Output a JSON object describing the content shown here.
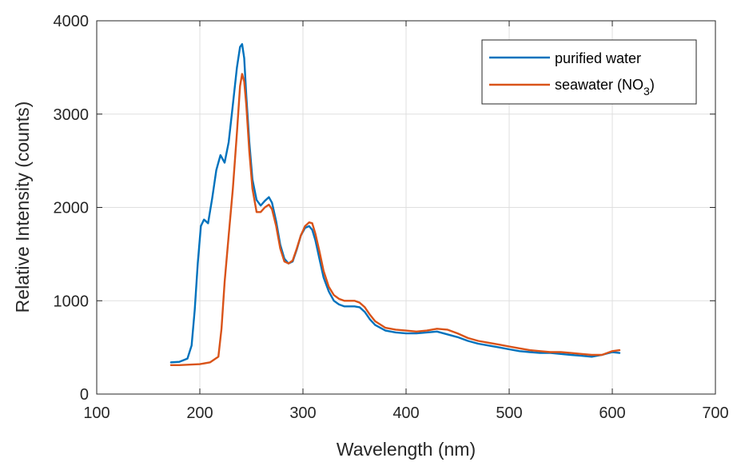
{
  "chart_data": {
    "type": "line",
    "xlabel": "Wavelength (nm)",
    "ylabel": "Relative Intensity (counts)",
    "xlim": [
      100,
      700
    ],
    "ylim": [
      0,
      4000
    ],
    "xticks": [
      100,
      200,
      300,
      400,
      500,
      600,
      700
    ],
    "yticks": [
      0,
      1000,
      2000,
      3000,
      4000
    ],
    "xtick_labels": [
      "100",
      "200",
      "300",
      "400",
      "500",
      "600",
      "700"
    ],
    "ytick_labels": [
      "0",
      "1000",
      "2000",
      "3000",
      "4000"
    ],
    "grid": true,
    "legend_position": "top-right",
    "legend": {
      "purified": "purified water",
      "seawater_prefix": "seawater (NO",
      "seawater_sub": "3",
      "seawater_suffix": ")"
    },
    "series": [
      {
        "name": "purified water",
        "color": "#0072BD",
        "x": [
          172,
          180,
          188,
          192,
          195,
          198,
          201,
          204,
          208,
          212,
          216,
          220,
          224,
          228,
          232,
          236,
          239,
          241,
          243,
          245,
          248,
          251,
          255,
          259,
          263,
          267,
          270,
          274,
          278,
          282,
          286,
          290,
          294,
          298,
          302,
          306,
          309,
          312,
          316,
          320,
          325,
          330,
          335,
          340,
          345,
          350,
          355,
          360,
          365,
          370,
          380,
          390,
          400,
          410,
          420,
          430,
          440,
          450,
          460,
          470,
          480,
          490,
          500,
          510,
          520,
          530,
          540,
          550,
          560,
          570,
          580,
          590,
          600,
          607
        ],
        "y": [
          340,
          345,
          380,
          520,
          900,
          1400,
          1800,
          1870,
          1830,
          2100,
          2400,
          2560,
          2480,
          2700,
          3100,
          3500,
          3720,
          3750,
          3600,
          3200,
          2700,
          2300,
          2080,
          2020,
          2070,
          2110,
          2050,
          1850,
          1600,
          1450,
          1400,
          1420,
          1550,
          1700,
          1780,
          1800,
          1760,
          1650,
          1450,
          1250,
          1100,
          1000,
          960,
          940,
          940,
          940,
          930,
          880,
          800,
          740,
          680,
          660,
          650,
          650,
          660,
          670,
          640,
          610,
          570,
          540,
          520,
          500,
          480,
          460,
          450,
          440,
          440,
          430,
          420,
          410,
          400,
          420,
          450,
          440
        ]
      },
      {
        "name": "seawater (NO3)",
        "color": "#D95319",
        "x": [
          172,
          180,
          190,
          200,
          210,
          218,
          221,
          224,
          228,
          232,
          236,
          239,
          241,
          243,
          245,
          248,
          251,
          255,
          259,
          263,
          267,
          270,
          274,
          278,
          282,
          286,
          290,
          294,
          298,
          302,
          306,
          309,
          312,
          316,
          320,
          325,
          330,
          335,
          340,
          345,
          350,
          355,
          360,
          365,
          370,
          380,
          390,
          400,
          410,
          420,
          430,
          440,
          450,
          460,
          470,
          480,
          490,
          500,
          510,
          520,
          530,
          540,
          550,
          560,
          570,
          580,
          590,
          600,
          607
        ],
        "y": [
          310,
          310,
          315,
          320,
          340,
          400,
          700,
          1200,
          1700,
          2200,
          2800,
          3300,
          3430,
          3350,
          3100,
          2600,
          2200,
          1950,
          1950,
          2000,
          2030,
          1980,
          1800,
          1560,
          1420,
          1400,
          1430,
          1560,
          1700,
          1800,
          1840,
          1830,
          1720,
          1530,
          1320,
          1150,
          1060,
          1020,
          1000,
          1000,
          1000,
          980,
          930,
          850,
          780,
          710,
          690,
          680,
          670,
          680,
          700,
          690,
          650,
          600,
          570,
          550,
          530,
          510,
          490,
          470,
          460,
          450,
          450,
          440,
          430,
          420,
          420,
          460,
          470
        ]
      }
    ]
  }
}
